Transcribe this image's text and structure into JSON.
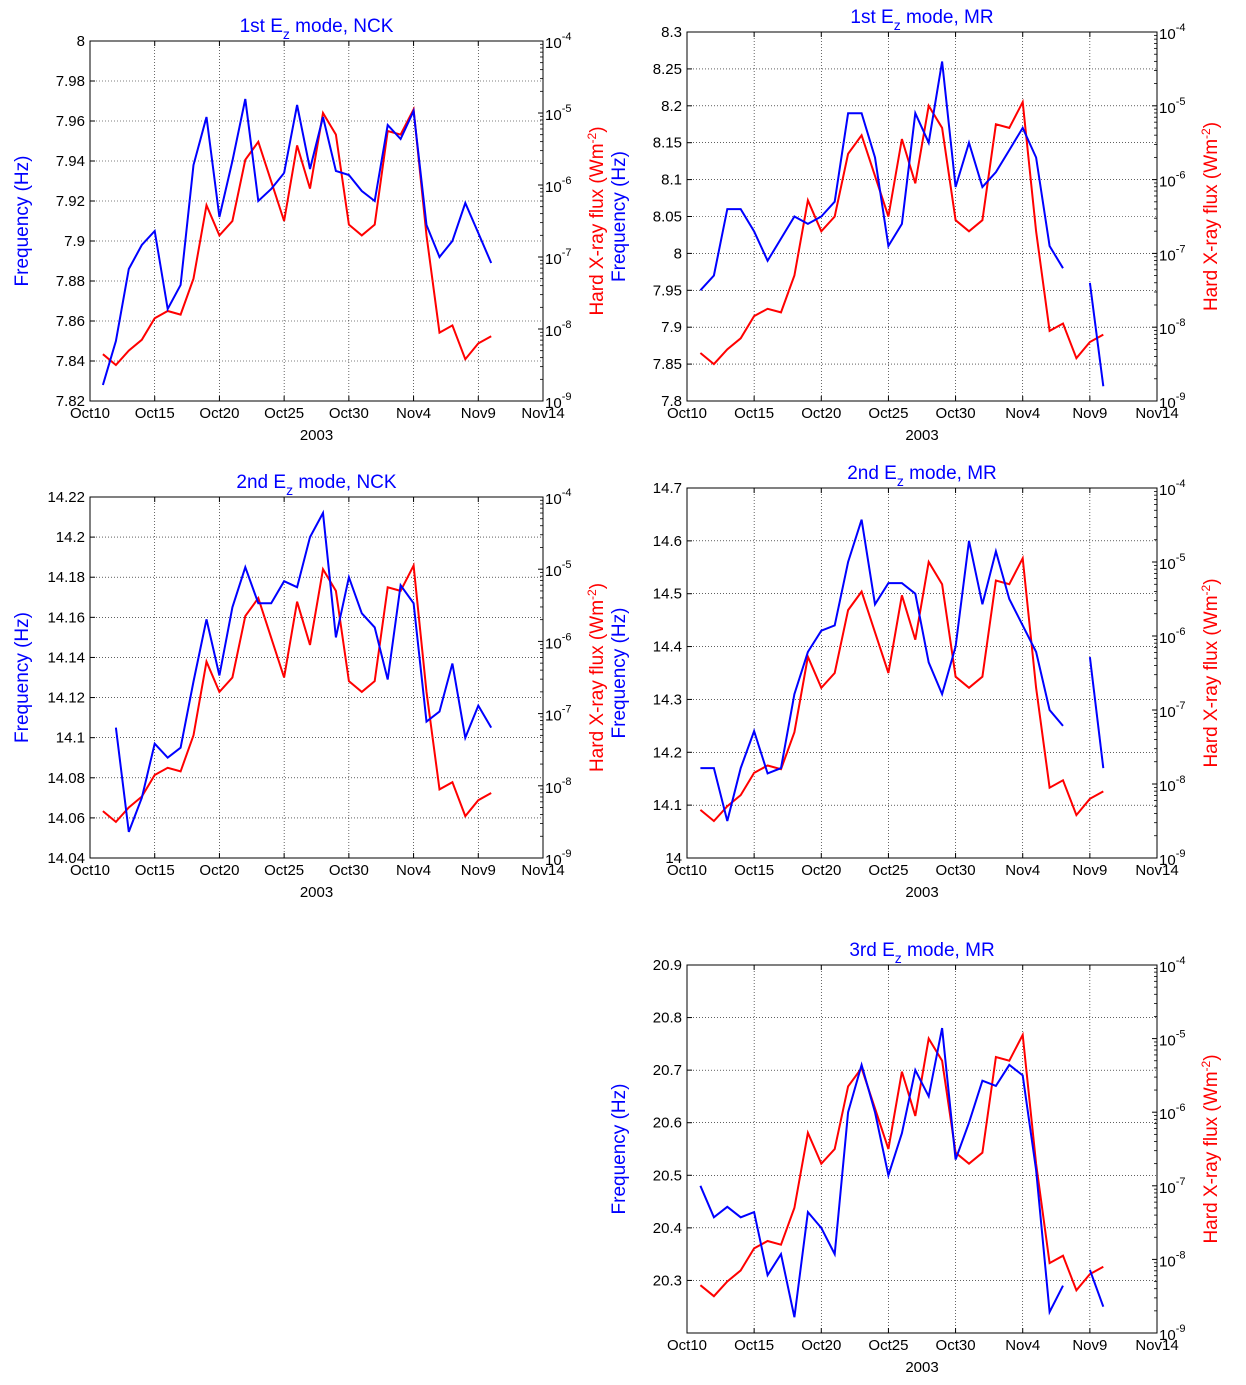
{
  "x_axis": {
    "label": "2003",
    "ticks": [
      "Oct10",
      "Oct15",
      "Oct20",
      "Oct25",
      "Oct30",
      "Nov4",
      "Nov9",
      "Nov14"
    ],
    "min_day": 0,
    "max_day": 35
  },
  "labels": {
    "left": "Frequency (Hz)",
    "right_main": "Hard X-ray flux (Wm",
    "right_sup": "-2",
    "right_end": ")"
  },
  "colors": {
    "frequency": "#0000ff",
    "xray": "#ff0000",
    "title": "#0000ff",
    "grid": "#000000"
  },
  "xray_ticks": {
    "base": "10",
    "exponents": [
      "-9",
      "-8",
      "-7",
      "-6",
      "-5",
      "-4"
    ]
  },
  "chart_data": [
    {
      "type": "line",
      "title_pre": "1st E",
      "title_sub": "z",
      "title_post": " mode, NCK",
      "ylim": [
        7.82,
        8.0
      ],
      "yticks": [
        7.82,
        7.84,
        7.86,
        7.88,
        7.9,
        7.92,
        7.94,
        7.96,
        7.98,
        8.0
      ],
      "ytick_labels": [
        "7.82",
        "7.84",
        "7.86",
        "7.88",
        "7.9",
        "7.92",
        "7.94",
        "7.96",
        "7.98",
        "8"
      ],
      "y2_log_range": [
        -9,
        -4
      ],
      "freq": [
        [
          1,
          7.828
        ],
        [
          2,
          7.85
        ],
        [
          3,
          7.886
        ],
        [
          4,
          7.898
        ],
        [
          5,
          7.905
        ],
        [
          6,
          7.866
        ],
        [
          7,
          7.878
        ],
        [
          8,
          7.938
        ],
        [
          9,
          7.962
        ],
        [
          10,
          7.912
        ],
        [
          11,
          7.94
        ],
        [
          12,
          7.971
        ],
        [
          13,
          7.92
        ],
        [
          14,
          7.926
        ],
        [
          15,
          7.934
        ],
        [
          16,
          7.968
        ],
        [
          17,
          7.936
        ],
        [
          18,
          7.962
        ],
        [
          19,
          7.935
        ],
        [
          20,
          7.933
        ],
        [
          21,
          7.925
        ],
        [
          22,
          7.92
        ],
        [
          23,
          7.958
        ],
        [
          24,
          7.951
        ],
        [
          25,
          7.965
        ],
        [
          26,
          7.908
        ],
        [
          27,
          7.892
        ],
        [
          28,
          7.9
        ],
        [
          29,
          7.919
        ],
        [
          30,
          7.904
        ],
        [
          31,
          7.889
        ]
      ],
      "xray_log": [
        [
          1,
          -8.35
        ],
        [
          2,
          -8.5
        ],
        [
          3,
          -8.3
        ],
        [
          4,
          -8.15
        ],
        [
          5,
          -7.85
        ],
        [
          6,
          -7.75
        ],
        [
          7,
          -7.8
        ],
        [
          8,
          -7.3
        ],
        [
          9,
          -6.28
        ],
        [
          10,
          -6.7
        ],
        [
          11,
          -6.5
        ],
        [
          12,
          -5.65
        ],
        [
          13,
          -5.4
        ],
        [
          14,
          -5.95
        ],
        [
          15,
          -6.5
        ],
        [
          16,
          -5.45
        ],
        [
          17,
          -6.05
        ],
        [
          18,
          -5.0
        ],
        [
          19,
          -5.3
        ],
        [
          20,
          -6.55
        ],
        [
          21,
          -6.7
        ],
        [
          22,
          -6.55
        ],
        [
          23,
          -5.25
        ],
        [
          24,
          -5.3
        ],
        [
          25,
          -4.95
        ],
        [
          26,
          -6.7
        ],
        [
          27,
          -8.05
        ],
        [
          28,
          -7.95
        ],
        [
          29,
          -8.42
        ],
        [
          30,
          -8.2
        ],
        [
          31,
          -8.1
        ]
      ]
    },
    {
      "type": "line",
      "title_pre": "1st E",
      "title_sub": "z",
      "title_post": " mode, MR",
      "ylim": [
        7.8,
        8.3
      ],
      "yticks": [
        7.8,
        7.85,
        7.9,
        7.95,
        8.0,
        8.05,
        8.1,
        8.15,
        8.2,
        8.25,
        8.3
      ],
      "ytick_labels": [
        "7.8",
        "7.85",
        "7.9",
        "7.95",
        "8",
        "8.05",
        "8.1",
        "8.15",
        "8.2",
        "8.25",
        "8.3"
      ],
      "y2_log_range": [
        -9,
        -4
      ],
      "freq": [
        [
          1,
          7.95
        ],
        [
          2,
          7.97
        ],
        [
          3,
          8.06
        ],
        [
          4,
          8.06
        ],
        [
          5,
          8.03
        ],
        [
          6,
          7.99
        ],
        [
          7,
          8.02
        ],
        [
          8,
          8.05
        ],
        [
          9,
          8.04
        ],
        [
          10,
          8.05
        ],
        [
          11,
          8.07
        ],
        [
          12,
          8.19
        ],
        [
          13,
          8.19
        ],
        [
          14,
          8.13
        ],
        [
          15,
          8.01
        ],
        [
          16,
          8.04
        ],
        [
          17,
          8.19
        ],
        [
          18,
          8.15
        ],
        [
          19,
          8.26
        ],
        [
          20,
          8.09
        ],
        [
          21,
          8.15
        ],
        [
          22,
          8.09
        ],
        [
          23,
          8.11
        ],
        [
          24,
          8.14
        ],
        [
          25,
          8.17
        ],
        [
          26,
          8.13
        ],
        [
          27,
          8.01
        ],
        [
          28,
          7.98
        ],
        null,
        [
          30,
          7.96
        ],
        [
          31,
          7.82
        ]
      ],
      "xray_log": [
        [
          1,
          -8.35
        ],
        [
          2,
          -8.5
        ],
        [
          3,
          -8.3
        ],
        [
          4,
          -8.15
        ],
        [
          5,
          -7.85
        ],
        [
          6,
          -7.75
        ],
        [
          7,
          -7.8
        ],
        [
          8,
          -7.3
        ],
        [
          9,
          -6.28
        ],
        [
          10,
          -6.7
        ],
        [
          11,
          -6.5
        ],
        [
          12,
          -5.65
        ],
        [
          13,
          -5.4
        ],
        [
          14,
          -5.95
        ],
        [
          15,
          -6.5
        ],
        [
          16,
          -5.45
        ],
        [
          17,
          -6.05
        ],
        [
          18,
          -5.0
        ],
        [
          19,
          -5.3
        ],
        [
          20,
          -6.55
        ],
        [
          21,
          -6.7
        ],
        [
          22,
          -6.55
        ],
        [
          23,
          -5.25
        ],
        [
          24,
          -5.3
        ],
        [
          25,
          -4.95
        ],
        [
          26,
          -6.7
        ],
        [
          27,
          -8.05
        ],
        [
          28,
          -7.95
        ],
        [
          29,
          -8.42
        ],
        [
          30,
          -8.2
        ],
        [
          31,
          -8.1
        ]
      ]
    },
    {
      "type": "line",
      "title_pre": "2nd E",
      "title_sub": "z",
      "title_post": " mode, NCK",
      "ylim": [
        14.04,
        14.22
      ],
      "yticks": [
        14.04,
        14.06,
        14.08,
        14.1,
        14.12,
        14.14,
        14.16,
        14.18,
        14.2,
        14.22
      ],
      "ytick_labels": [
        "14.04",
        "14.06",
        "14.08",
        "14.1",
        "14.12",
        "14.14",
        "14.16",
        "14.18",
        "14.2",
        "14.22"
      ],
      "y2_log_range": [
        -9,
        -4
      ],
      "freq": [
        [
          2,
          14.105
        ],
        [
          3,
          14.053
        ],
        [
          4,
          14.07
        ],
        [
          5,
          14.097
        ],
        [
          6,
          14.09
        ],
        [
          7,
          14.095
        ],
        [
          8,
          14.128
        ],
        [
          9,
          14.159
        ],
        [
          10,
          14.131
        ],
        [
          11,
          14.165
        ],
        [
          12,
          14.185
        ],
        [
          13,
          14.167
        ],
        [
          14,
          14.167
        ],
        [
          15,
          14.178
        ],
        [
          16,
          14.175
        ],
        [
          17,
          14.2
        ],
        [
          18,
          14.212
        ],
        [
          19,
          14.15
        ],
        [
          20,
          14.18
        ],
        [
          21,
          14.162
        ],
        [
          22,
          14.155
        ],
        [
          23,
          14.129
        ],
        [
          24,
          14.176
        ],
        [
          25,
          14.167
        ],
        [
          26,
          14.108
        ],
        [
          27,
          14.113
        ],
        [
          28,
          14.137
        ],
        [
          29,
          14.1
        ],
        [
          30,
          14.116
        ],
        [
          31,
          14.105
        ]
      ],
      "xray_log": [
        [
          1,
          -8.35
        ],
        [
          2,
          -8.5
        ],
        [
          3,
          -8.3
        ],
        [
          4,
          -8.15
        ],
        [
          5,
          -7.85
        ],
        [
          6,
          -7.75
        ],
        [
          7,
          -7.8
        ],
        [
          8,
          -7.3
        ],
        [
          9,
          -6.28
        ],
        [
          10,
          -6.7
        ],
        [
          11,
          -6.5
        ],
        [
          12,
          -5.65
        ],
        [
          13,
          -5.4
        ],
        [
          14,
          -5.95
        ],
        [
          15,
          -6.5
        ],
        [
          16,
          -5.45
        ],
        [
          17,
          -6.05
        ],
        [
          18,
          -5.0
        ],
        [
          19,
          -5.3
        ],
        [
          20,
          -6.55
        ],
        [
          21,
          -6.7
        ],
        [
          22,
          -6.55
        ],
        [
          23,
          -5.25
        ],
        [
          24,
          -5.3
        ],
        [
          25,
          -4.95
        ],
        [
          26,
          -6.7
        ],
        [
          27,
          -8.05
        ],
        [
          28,
          -7.95
        ],
        [
          29,
          -8.42
        ],
        [
          30,
          -8.2
        ],
        [
          31,
          -8.1
        ]
      ]
    },
    {
      "type": "line",
      "title_pre": "2nd E",
      "title_sub": "z",
      "title_post": " mode, MR",
      "ylim": [
        14.0,
        14.7
      ],
      "yticks": [
        14.0,
        14.1,
        14.2,
        14.3,
        14.4,
        14.5,
        14.6,
        14.7
      ],
      "ytick_labels": [
        "14",
        "14.1",
        "14.2",
        "14.3",
        "14.4",
        "14.5",
        "14.6",
        "14.7"
      ],
      "y2_log_range": [
        -9,
        -4
      ],
      "freq": [
        [
          1,
          14.17
        ],
        [
          2,
          14.17
        ],
        [
          3,
          14.07
        ],
        [
          4,
          14.17
        ],
        [
          5,
          14.24
        ],
        [
          6,
          14.16
        ],
        [
          7,
          14.17
        ],
        [
          8,
          14.31
        ],
        [
          9,
          14.39
        ],
        [
          10,
          14.43
        ],
        [
          11,
          14.44
        ],
        [
          12,
          14.56
        ],
        [
          13,
          14.64
        ],
        [
          14,
          14.48
        ],
        [
          15,
          14.52
        ],
        [
          16,
          14.52
        ],
        [
          17,
          14.5
        ],
        [
          18,
          14.37
        ],
        [
          19,
          14.31
        ],
        [
          20,
          14.4
        ],
        [
          21,
          14.6
        ],
        [
          22,
          14.48
        ],
        [
          23,
          14.58
        ],
        [
          24,
          14.49
        ],
        [
          25,
          14.44
        ],
        [
          26,
          14.39
        ],
        [
          27,
          14.28
        ],
        [
          28,
          14.25
        ],
        null,
        [
          30,
          14.38
        ],
        [
          31,
          14.17
        ]
      ],
      "xray_log": [
        [
          1,
          -8.35
        ],
        [
          2,
          -8.5
        ],
        [
          3,
          -8.3
        ],
        [
          4,
          -8.15
        ],
        [
          5,
          -7.85
        ],
        [
          6,
          -7.75
        ],
        [
          7,
          -7.8
        ],
        [
          8,
          -7.3
        ],
        [
          9,
          -6.28
        ],
        [
          10,
          -6.7
        ],
        [
          11,
          -6.5
        ],
        [
          12,
          -5.65
        ],
        [
          13,
          -5.4
        ],
        [
          14,
          -5.95
        ],
        [
          15,
          -6.5
        ],
        [
          16,
          -5.45
        ],
        [
          17,
          -6.05
        ],
        [
          18,
          -5.0
        ],
        [
          19,
          -5.3
        ],
        [
          20,
          -6.55
        ],
        [
          21,
          -6.7
        ],
        [
          22,
          -6.55
        ],
        [
          23,
          -5.25
        ],
        [
          24,
          -5.3
        ],
        [
          25,
          -4.95
        ],
        [
          26,
          -6.7
        ],
        [
          27,
          -8.05
        ],
        [
          28,
          -7.95
        ],
        [
          29,
          -8.42
        ],
        [
          30,
          -8.2
        ],
        [
          31,
          -8.1
        ]
      ]
    },
    {
      "type": "line",
      "title_pre": "3rd E",
      "title_sub": "z",
      "title_post": " mode, MR",
      "ylim": [
        20.2,
        20.9
      ],
      "yticks": [
        20.3,
        20.4,
        20.5,
        20.6,
        20.7,
        20.8,
        20.9
      ],
      "ytick_labels": [
        "20.3",
        "20.4",
        "20.5",
        "20.6",
        "20.7",
        "20.8",
        "20.9"
      ],
      "y2_log_range": [
        -9,
        -4
      ],
      "freq": [
        [
          1,
          20.48
        ],
        [
          2,
          20.42
        ],
        [
          3,
          20.44
        ],
        [
          4,
          20.42
        ],
        [
          5,
          20.43
        ],
        [
          6,
          20.31
        ],
        [
          7,
          20.35
        ],
        [
          8,
          20.23
        ],
        [
          9,
          20.43
        ],
        [
          10,
          20.4
        ],
        [
          11,
          20.35
        ],
        [
          12,
          20.62
        ],
        [
          13,
          20.71
        ],
        [
          14,
          20.62
        ],
        [
          15,
          20.5
        ],
        [
          16,
          20.58
        ],
        [
          17,
          20.7
        ],
        [
          18,
          20.65
        ],
        [
          19,
          20.78
        ],
        [
          20,
          20.53
        ],
        [
          21,
          20.6
        ],
        [
          22,
          20.68
        ],
        [
          23,
          20.67
        ],
        [
          24,
          20.71
        ],
        [
          25,
          20.69
        ],
        [
          26,
          20.51
        ],
        [
          27,
          20.24
        ],
        [
          28,
          20.29
        ],
        null,
        [
          30,
          20.32
        ],
        [
          31,
          20.25
        ]
      ],
      "xray_log": [
        [
          1,
          -8.35
        ],
        [
          2,
          -8.5
        ],
        [
          3,
          -8.3
        ],
        [
          4,
          -8.15
        ],
        [
          5,
          -7.85
        ],
        [
          6,
          -7.75
        ],
        [
          7,
          -7.8
        ],
        [
          8,
          -7.3
        ],
        [
          9,
          -6.28
        ],
        [
          10,
          -6.7
        ],
        [
          11,
          -6.5
        ],
        [
          12,
          -5.65
        ],
        [
          13,
          -5.4
        ],
        [
          14,
          -5.95
        ],
        [
          15,
          -6.5
        ],
        [
          16,
          -5.45
        ],
        [
          17,
          -6.05
        ],
        [
          18,
          -5.0
        ],
        [
          19,
          -5.3
        ],
        [
          20,
          -6.55
        ],
        [
          21,
          -6.7
        ],
        [
          22,
          -6.55
        ],
        [
          23,
          -5.25
        ],
        [
          24,
          -5.3
        ],
        [
          25,
          -4.95
        ],
        [
          26,
          -6.7
        ],
        [
          27,
          -8.05
        ],
        [
          28,
          -7.95
        ],
        [
          29,
          -8.42
        ],
        [
          30,
          -8.2
        ],
        [
          31,
          -8.1
        ]
      ]
    }
  ]
}
